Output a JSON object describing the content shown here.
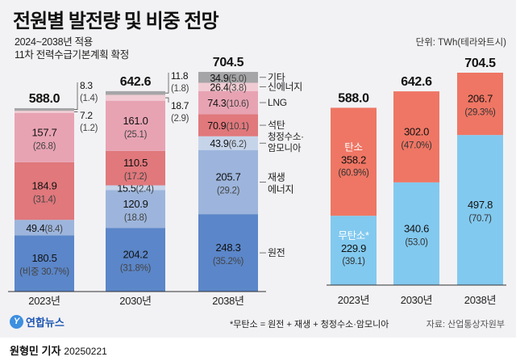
{
  "title": "전원별 발전량 및 비중 전망",
  "subtitle_lines": [
    "2024~2038년 적용",
    "11차 전력수급기본계획 확정"
  ],
  "unit": "단위: TWh(테라와트시)",
  "footnote": "*무탄소 = 원전 + 재생 + 청정수소·암모니아",
  "source": "자료: 산업통상자원부",
  "logo": "연합뉴스",
  "byline": {
    "name": "원형민 기자",
    "date": "20250221"
  },
  "chart_data": [
    {
      "type": "bar",
      "stacked": true,
      "categories": [
        "2023년",
        "2030년",
        "2038년"
      ],
      "totals": [
        "588.0",
        "642.6",
        "704.5"
      ],
      "series": [
        {
          "name": "원전",
          "color": "#5b86c9",
          "values": [
            180.5,
            204.2,
            248.3
          ],
          "shares": [
            "(비중 30.7%)",
            "(31.8%)",
            "(35.2%)"
          ]
        },
        {
          "name": "재생 에너지",
          "color": "#9db5dc",
          "values": [
            49.4,
            120.9,
            205.7
          ],
          "shares": [
            "(8.4)",
            "(18.8)",
            "(29.2)"
          ]
        },
        {
          "name": "청정수소·암모니아",
          "color": "#c6d4ea",
          "values": [
            0,
            15.5,
            43.9
          ],
          "shares": [
            "",
            "(2.4)",
            "(6.2)"
          ]
        },
        {
          "name": "석탄",
          "color": "#e0787c",
          "values": [
            184.9,
            110.5,
            70.9
          ],
          "shares": [
            "(31.4)",
            "(17.2)",
            "(10.1)"
          ]
        },
        {
          "name": "LNG",
          "color": "#e8a3b3",
          "values": [
            157.7,
            161.0,
            74.3
          ],
          "shares": [
            "(26.8)",
            "(25.1)",
            "(10.6)"
          ]
        },
        {
          "name": "신에너지",
          "color": "#f1cbd3",
          "values": [
            7.2,
            18.7,
            26.4
          ],
          "shares": [
            "(1.2)",
            "(2.9)",
            "(3.8)"
          ]
        },
        {
          "name": "기타",
          "color": "#a5a5a7",
          "values": [
            8.3,
            11.8,
            34.9
          ],
          "shares": [
            "(1.4)",
            "(1.8)",
            "(5.0)"
          ]
        }
      ],
      "ylim": [
        0,
        704.5
      ]
    },
    {
      "type": "bar",
      "stacked": true,
      "categories": [
        "2023년",
        "2030년",
        "2038년"
      ],
      "totals": [
        "588.0",
        "642.6",
        "704.5"
      ],
      "series": [
        {
          "name": "무탄소*",
          "color": "#82c9ef",
          "values": [
            229.9,
            340.6,
            497.8
          ],
          "shares": [
            "(39.1)",
            "(53.0)",
            "(70.7)"
          ]
        },
        {
          "name": "탄소",
          "color": "#ef7664",
          "values": [
            358.2,
            302.0,
            206.7
          ],
          "shares": [
            "(60.9%)",
            "(47.0%)",
            "(29.3%)"
          ]
        }
      ],
      "ylim": [
        0,
        704.5
      ]
    }
  ]
}
